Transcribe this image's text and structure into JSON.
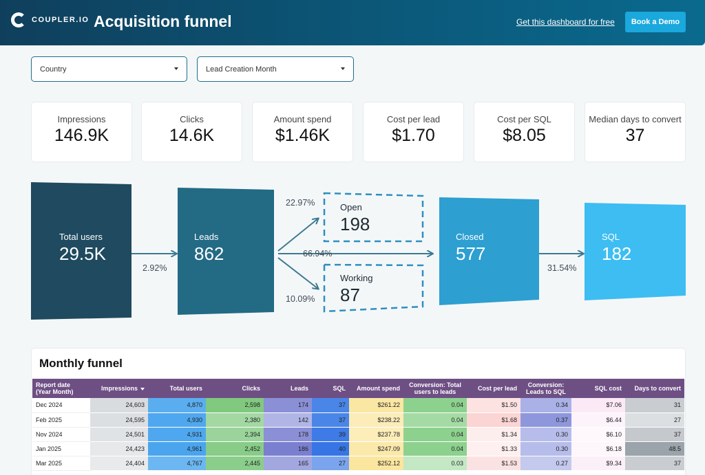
{
  "header": {
    "logo_text": "COUPLER.IO",
    "title": "Acquisition funnel",
    "link": "Get this dashboard for free",
    "button": "Book a Demo"
  },
  "filters": [
    {
      "label": "Country"
    },
    {
      "label": "Lead Creation Month"
    }
  ],
  "kpis": [
    {
      "label": "Impressions",
      "value": "146.9K"
    },
    {
      "label": "Clicks",
      "value": "14.6K"
    },
    {
      "label": "Amount spend",
      "value": "$1.46K"
    },
    {
      "label": "Cost per lead",
      "value": "$1.70"
    },
    {
      "label": "Cost per SQL",
      "value": "$8.05"
    },
    {
      "label": "Median days to convert",
      "value": "37"
    }
  ],
  "funnel": {
    "total_users": {
      "label": "Total users",
      "value": "29.5K"
    },
    "leads": {
      "label": "Leads",
      "value": "862"
    },
    "open": {
      "label": "Open",
      "value": "198"
    },
    "working": {
      "label": "Working",
      "value": "87"
    },
    "closed": {
      "label": "Closed",
      "value": "577"
    },
    "sql": {
      "label": "SQL",
      "value": "182"
    },
    "pct_users_to_leads": "2.92%",
    "pct_to_open": "22.97%",
    "pct_to_closed": "66.94%",
    "pct_to_working": "10.09%",
    "pct_closed_to_sql": "31.54%"
  },
  "table": {
    "title": "Monthly funnel",
    "headers": [
      "Report date (Year Month)",
      "Impressions",
      "Total users",
      "Clicks",
      "Leads",
      "SQL",
      "Amount spend",
      "Conversion: Total users to leads",
      "Cost per lead",
      "Conversion: Leads to SQL",
      "SQL cost",
      "Days to convert"
    ],
    "rows": [
      [
        "Dec 2024",
        "24,603",
        "4,870",
        "2,598",
        "174",
        "37",
        "$261.22",
        "0.04",
        "$1.50",
        "0.34",
        "$7.06",
        "31"
      ],
      [
        "Feb 2025",
        "24,595",
        "4,930",
        "2,380",
        "142",
        "37",
        "$238.22",
        "0.04",
        "$1.68",
        "0.37",
        "$6.44",
        "27"
      ],
      [
        "Nov 2024",
        "24,501",
        "4,931",
        "2,394",
        "178",
        "39",
        "$237.78",
        "0.04",
        "$1.34",
        "0.30",
        "$6.10",
        "37"
      ],
      [
        "Jan 2025",
        "24,423",
        "4,961",
        "2,452",
        "186",
        "40",
        "$247.09",
        "0.04",
        "$1.33",
        "0.30",
        "$6.18",
        "48.5"
      ],
      [
        "Mar 2025",
        "24,404",
        "4,767",
        "2,445",
        "165",
        "27",
        "$252.12",
        "0.03",
        "$1.53",
        "0.27",
        "$9.34",
        "37"
      ]
    ],
    "cell_colors": [
      [
        "#ffffff",
        "#d9dcde",
        "#5aaef0",
        "#80c97f",
        "#8a8fd6",
        "#4a86e8",
        "#fbe7a4",
        "#8dd18e",
        "#fde2e2",
        "#aab1e6",
        "#fbe9f6",
        "#c9cdd2"
      ],
      [
        "#ffffff",
        "#dcdfe1",
        "#4fa8ef",
        "#a3d8a2",
        "#b0b5e6",
        "#4a86e8",
        "#fcecb8",
        "#a4dba4",
        "#fbd4d4",
        "#8e97dc",
        "#fdf3fa",
        "#dcdfe2"
      ],
      [
        "#ffffff",
        "#e0e3e5",
        "#4fa8ef",
        "#9ad49a",
        "#8a8fd6",
        "#3f7be6",
        "#fcedb9",
        "#8dd18e",
        "#fdeeee",
        "#b7bdea",
        "#fef8fc",
        "#c5c9ce"
      ],
      [
        "#ffffff",
        "#e6e8ea",
        "#4aa5ee",
        "#88cc87",
        "#7a7fd0",
        "#3775e4",
        "#fbe9ab",
        "#8dd18e",
        "#fef0f0",
        "#b7bdea",
        "#fdf6fb",
        "#9ba3ab"
      ],
      [
        "#ffffff",
        "#e8eaec",
        "#6cb7f1",
        "#8bcd8a",
        "#a2a7e0",
        "#7aa5ee",
        "#fbe6a0",
        "#c3e8c3",
        "#fbe2e2",
        "#c4c9ee",
        "#fbf0f8",
        "#c9cdd2"
      ]
    ]
  }
}
